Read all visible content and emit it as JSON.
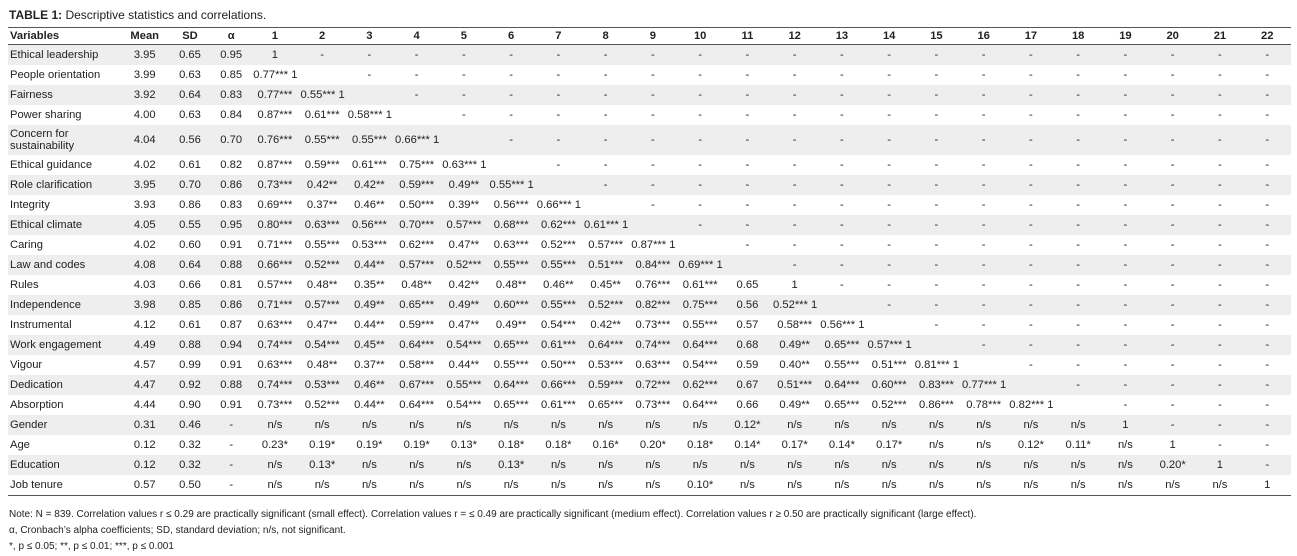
{
  "caption": {
    "label": "TABLE 1:",
    "title": "Descriptive statistics and correlations."
  },
  "headers": [
    "Variables",
    "Mean",
    "SD",
    "α",
    "1",
    "2",
    "3",
    "4",
    "5",
    "6",
    "7",
    "8",
    "9",
    "10",
    "11",
    "12",
    "13",
    "14",
    "15",
    "16",
    "17",
    "18",
    "19",
    "20",
    "21",
    "22"
  ],
  "rows": [
    {
      "variable": "Ethical leadership",
      "mean": "3.95",
      "sd": "0.65",
      "alpha": "0.95",
      "corr": [
        "1",
        "-",
        "-",
        "-",
        "-",
        "-",
        "-",
        "-",
        "-",
        "-",
        "-",
        "-",
        "-",
        "-",
        "-",
        "-",
        "-",
        "-",
        "-",
        "-",
        "-",
        "-"
      ]
    },
    {
      "variable": "People orientation",
      "mean": "3.99",
      "sd": "0.63",
      "alpha": "0.85",
      "corr": [
        "0.77*** 1",
        "",
        "-",
        "-",
        "-",
        "-",
        "-",
        "-",
        "-",
        "-",
        "-",
        "-",
        "-",
        "-",
        "-",
        "-",
        "-",
        "-",
        "-",
        "-",
        "-",
        "-"
      ]
    },
    {
      "variable": "Fairness",
      "mean": "3.92",
      "sd": "0.64",
      "alpha": "0.83",
      "corr": [
        "0.77***",
        "0.55*** 1",
        "",
        "-",
        "-",
        "-",
        "-",
        "-",
        "-",
        "-",
        "-",
        "-",
        "-",
        "-",
        "-",
        "-",
        "-",
        "-",
        "-",
        "-",
        "-",
        "-"
      ]
    },
    {
      "variable": "Power sharing",
      "mean": "4.00",
      "sd": "0.63",
      "alpha": "0.84",
      "corr": [
        "0.87***",
        "0.61***",
        "0.58*** 1",
        "",
        "-",
        "-",
        "-",
        "-",
        "-",
        "-",
        "-",
        "-",
        "-",
        "-",
        "-",
        "-",
        "-",
        "-",
        "-",
        "-",
        "-",
        "-"
      ]
    },
    {
      "variable": "Concern for sustainability",
      "mean": "4.04",
      "sd": "0.56",
      "alpha": "0.70",
      "corr": [
        "0.76***",
        "0.55***",
        "0.55***",
        "0.66*** 1",
        "",
        "-",
        "-",
        "-",
        "-",
        "-",
        "-",
        "-",
        "-",
        "-",
        "-",
        "-",
        "-",
        "-",
        "-",
        "-",
        "-",
        "-"
      ]
    },
    {
      "variable": "Ethical guidance",
      "mean": "4.02",
      "sd": "0.61",
      "alpha": "0.82",
      "corr": [
        "0.87***",
        "0.59***",
        "0.61***",
        "0.75***",
        "0.63*** 1",
        "",
        "-",
        "-",
        "-",
        "-",
        "-",
        "-",
        "-",
        "-",
        "-",
        "-",
        "-",
        "-",
        "-",
        "-",
        "-",
        "-"
      ]
    },
    {
      "variable": "Role clarification",
      "mean": "3.95",
      "sd": "0.70",
      "alpha": "0.86",
      "corr": [
        "0.73***",
        "0.42**",
        "0.42**",
        "0.59***",
        "0.49**",
        "0.55*** 1",
        "",
        "-",
        "-",
        "-",
        "-",
        "-",
        "-",
        "-",
        "-",
        "-",
        "-",
        "-",
        "-",
        "-",
        "-",
        "-"
      ]
    },
    {
      "variable": "Integrity",
      "mean": "3.93",
      "sd": "0.86",
      "alpha": "0.83",
      "corr": [
        "0.69***",
        "0.37**",
        "0.46**",
        "0.50***",
        "0.39**",
        "0.56***",
        "0.66*** 1",
        "",
        "-",
        "-",
        "-",
        "-",
        "-",
        "-",
        "-",
        "-",
        "-",
        "-",
        "-",
        "-",
        "-",
        "-"
      ]
    },
    {
      "variable": "Ethical climate",
      "mean": "4.05",
      "sd": "0.55",
      "alpha": "0.95",
      "corr": [
        "0.80***",
        "0.63***",
        "0.56***",
        "0.70***",
        "0.57***",
        "0.68***",
        "0.62***",
        "0.61*** 1",
        "",
        "-",
        "-",
        "-",
        "-",
        "-",
        "-",
        "-",
        "-",
        "-",
        "-",
        "-",
        "-",
        "-"
      ]
    },
    {
      "variable": "Caring",
      "mean": "4.02",
      "sd": "0.60",
      "alpha": "0.91",
      "corr": [
        "0.71***",
        "0.55***",
        "0.53***",
        "0.62***",
        "0.47**",
        "0.63***",
        "0.52***",
        "0.57***",
        "0.87*** 1",
        "",
        "-",
        "-",
        "-",
        "-",
        "-",
        "-",
        "-",
        "-",
        "-",
        "-",
        "-",
        "-"
      ]
    },
    {
      "variable": "Law and codes",
      "mean": "4.08",
      "sd": "0.64",
      "alpha": "0.88",
      "corr": [
        "0.66***",
        "0.52***",
        "0.44**",
        "0.57***",
        "0.52***",
        "0.55***",
        "0.55***",
        "0.51***",
        "0.84***",
        "0.69*** 1",
        "",
        "-",
        "-",
        "-",
        "-",
        "-",
        "-",
        "-",
        "-",
        "-",
        "-",
        "-"
      ]
    },
    {
      "variable": "Rules",
      "mean": "4.03",
      "sd": "0.66",
      "alpha": "0.81",
      "corr": [
        "0.57***",
        "0.48**",
        "0.35**",
        "0.48**",
        "0.42**",
        "0.48**",
        "0.46**",
        "0.45**",
        "0.76***",
        "0.61***",
        "0.65",
        "1",
        "-",
        "-",
        "-",
        "-",
        "-",
        "-",
        "-",
        "-",
        "-",
        "-"
      ]
    },
    {
      "variable": "Independence",
      "mean": "3.98",
      "sd": "0.85",
      "alpha": "0.86",
      "corr": [
        "0.71***",
        "0.57***",
        "0.49**",
        "0.65***",
        "0.49**",
        "0.60***",
        "0.55***",
        "0.52***",
        "0.82***",
        "0.75***",
        "0.56",
        "0.52*** 1",
        "",
        "-",
        "-",
        "-",
        "-",
        "-",
        "-",
        "-",
        "-",
        "-"
      ]
    },
    {
      "variable": "Instrumental",
      "mean": "4.12",
      "sd": "0.61",
      "alpha": "0.87",
      "corr": [
        "0.63***",
        "0.47**",
        "0.44**",
        "0.59***",
        "0.47**",
        "0.49**",
        "0.54***",
        "0.42**",
        "0.73***",
        "0.55***",
        "0.57",
        "0.58***",
        "0.56*** 1",
        "",
        "-",
        "-",
        "-",
        "-",
        "-",
        "-",
        "-",
        "-"
      ]
    },
    {
      "variable": "Work engagement",
      "mean": "4.49",
      "sd": "0.88",
      "alpha": "0.94",
      "corr": [
        "0.74***",
        "0.54***",
        "0.45**",
        "0.64***",
        "0.54***",
        "0.65***",
        "0.61***",
        "0.64***",
        "0.74***",
        "0.64***",
        "0.68",
        "0.49**",
        "0.65***",
        "0.57*** 1",
        "",
        "-",
        "-",
        "-",
        "-",
        "-",
        "-",
        "-"
      ]
    },
    {
      "variable": "Vigour",
      "mean": "4.57",
      "sd": "0.99",
      "alpha": "0.91",
      "corr": [
        "0.63***",
        "0.48**",
        "0.37**",
        "0.58***",
        "0.44**",
        "0.55***",
        "0.50***",
        "0.53***",
        "0.63***",
        "0.54***",
        "0.59",
        "0.40**",
        "0.55***",
        "0.51***",
        "0.81*** 1",
        "",
        "-",
        "-",
        "-",
        "-",
        "-",
        "-"
      ]
    },
    {
      "variable": "Dedication",
      "mean": "4.47",
      "sd": "0.92",
      "alpha": "0.88",
      "corr": [
        "0.74***",
        "0.53***",
        "0.46**",
        "0.67***",
        "0.55***",
        "0.64***",
        "0.66***",
        "0.59***",
        "0.72***",
        "0.62***",
        "0.67",
        "0.51***",
        "0.64***",
        "0.60***",
        "0.83***",
        "0.77*** 1",
        "",
        "-",
        "-",
        "-",
        "-",
        "-"
      ]
    },
    {
      "variable": "Absorption",
      "mean": "4.44",
      "sd": "0.90",
      "alpha": "0.91",
      "corr": [
        "0.73***",
        "0.52***",
        "0.44**",
        "0.64***",
        "0.54***",
        "0.65***",
        "0.61***",
        "0.65***",
        "0.73***",
        "0.64***",
        "0.66",
        "0.49**",
        "0.65***",
        "0.52***",
        "0.86***",
        "0.78***",
        "0.82*** 1",
        "",
        "-",
        "-",
        "-",
        "-"
      ]
    },
    {
      "variable": "Gender",
      "mean": "0.31",
      "sd": "0.46",
      "alpha": "-",
      "corr": [
        "n/s",
        "n/s",
        "n/s",
        "n/s",
        "n/s",
        "n/s",
        "n/s",
        "n/s",
        "n/s",
        "n/s",
        "0.12*",
        "n/s",
        "n/s",
        "n/s",
        "n/s",
        "n/s",
        "n/s",
        "n/s",
        "1",
        "-",
        "-",
        "-"
      ]
    },
    {
      "variable": "Age",
      "mean": "0.12",
      "sd": "0.32",
      "alpha": "-",
      "corr": [
        "0.23*",
        "0.19*",
        "0.19*",
        "0.19*",
        "0.13*",
        "0.18*",
        "0.18*",
        "0.16*",
        "0.20*",
        "0.18*",
        "0.14*",
        "0.17*",
        "0.14*",
        "0.17*",
        "n/s",
        "n/s",
        "0.12*",
        "0.11*",
        "n/s",
        "1",
        "-",
        "-"
      ]
    },
    {
      "variable": "Education",
      "mean": "0.12",
      "sd": "0.32",
      "alpha": "-",
      "corr": [
        "n/s",
        "0.13*",
        "n/s",
        "n/s",
        "n/s",
        "0.13*",
        "n/s",
        "n/s",
        "n/s",
        "n/s",
        "n/s",
        "n/s",
        "n/s",
        "n/s",
        "n/s",
        "n/s",
        "n/s",
        "n/s",
        "n/s",
        "0.20*",
        "1",
        "-"
      ]
    },
    {
      "variable": "Job tenure",
      "mean": "0.57",
      "sd": "0.50",
      "alpha": "-",
      "corr": [
        "n/s",
        "n/s",
        "n/s",
        "n/s",
        "n/s",
        "n/s",
        "n/s",
        "n/s",
        "n/s",
        "0.10*",
        "n/s",
        "n/s",
        "n/s",
        "n/s",
        "n/s",
        "n/s",
        "n/s",
        "n/s",
        "n/s",
        "n/s",
        "n/s",
        "1"
      ]
    }
  ],
  "notes": {
    "line1": "Note: N = 839. Correlation values r ≤ 0.29 are practically significant (small effect). Correlation values r = ≤ 0.49 are practically significant (medium effect). Correlation values r ≥ 0.50 are practically significant (large effect).",
    "line2": "α, Cronbach’s alpha coefficients; SD, standard deviation; n/s, not significant.",
    "line3": "*, p ≤ 0.05; **, p ≤ 0.01; ***, p ≤ 0.001"
  }
}
